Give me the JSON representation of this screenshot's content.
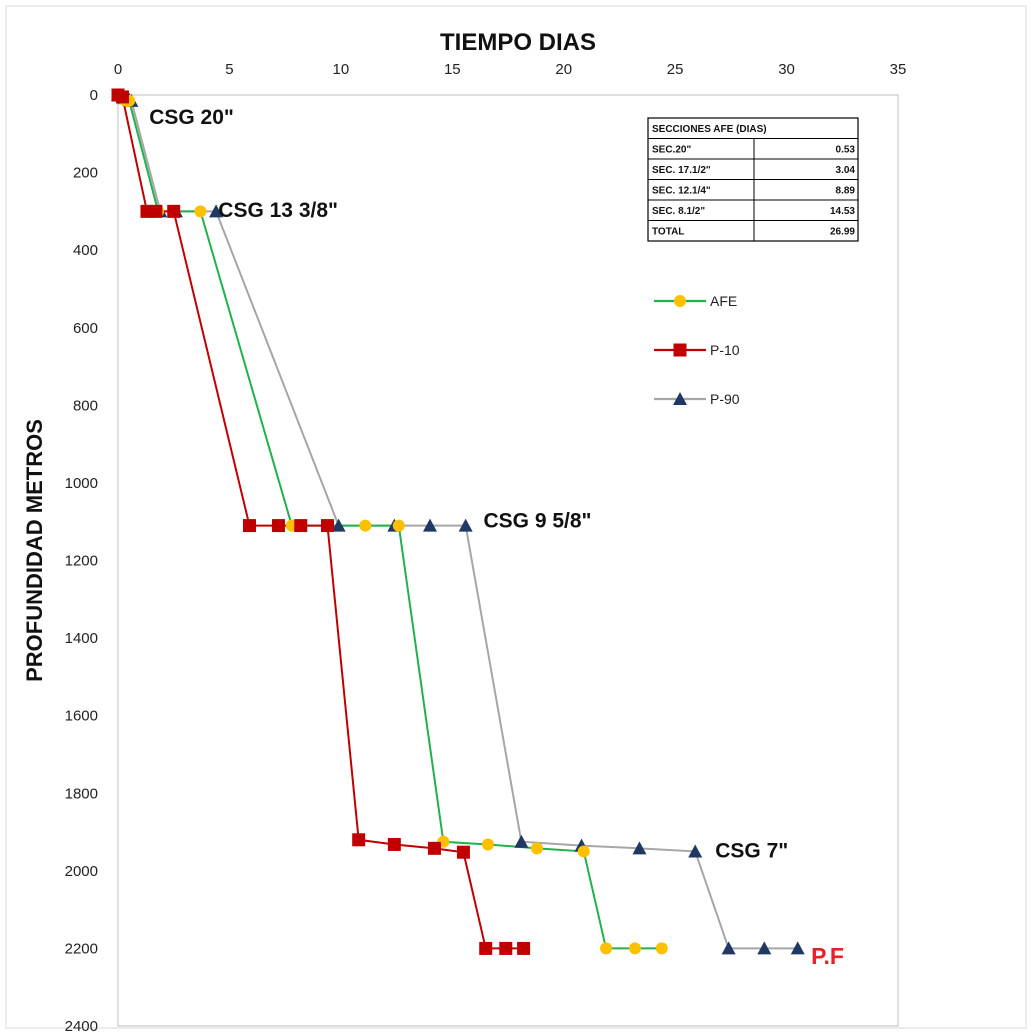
{
  "chart_data": {
    "type": "line",
    "title": "",
    "xlabel": "TIEMPO DIAS",
    "ylabel": "PROFUNDIDAD METROS",
    "xlim": [
      0,
      35
    ],
    "ylim": [
      0,
      2400
    ],
    "y_inverted": true,
    "x_axis_position": "top",
    "x_ticks": [
      "0",
      "5",
      "10",
      "15",
      "20",
      "25",
      "30",
      "35"
    ],
    "y_ticks": [
      "0",
      "200",
      "400",
      "600",
      "800",
      "1000",
      "1200",
      "1400",
      "1600",
      "1800",
      "2000",
      "2200",
      "2400"
    ],
    "grid": false,
    "legend_position": "right",
    "series": [
      {
        "name": "AFE",
        "color": "#22b14c",
        "marker": "circle",
        "marker_color": "#ffc000",
        "x": [
          0,
          0.2,
          0.4,
          0.5,
          1.8,
          3.7,
          7.8,
          8.0,
          11.1,
          12.6,
          14.6,
          16.6,
          18.8,
          20.9,
          21.9,
          23.2,
          24.4
        ],
        "y": [
          0,
          10,
          15,
          15,
          300,
          300,
          1110,
          1110,
          1110,
          1110,
          1925,
          1932,
          1942,
          1950,
          2200,
          2200,
          2200
        ]
      },
      {
        "name": "P-10",
        "color": "#c00000",
        "marker": "square",
        "marker_color": "#c00000",
        "x": [
          0,
          0.2,
          1.3,
          1.7,
          2.5,
          5.9,
          7.2,
          8.2,
          9.4,
          10.8,
          12.4,
          14.2,
          15.5,
          16.5,
          17.4,
          18.2
        ],
        "y": [
          0,
          5,
          300,
          300,
          300,
          1110,
          1110,
          1110,
          1110,
          1920,
          1932,
          1942,
          1952,
          2200,
          2200,
          2200
        ]
      },
      {
        "name": "P-90",
        "color": "#a6a6a6",
        "marker": "triangle",
        "marker_color": "#1f3864",
        "x": [
          0,
          0.3,
          0.5,
          0.6,
          1.9,
          2.6,
          4.4,
          9.9,
          12.4,
          14.0,
          15.6,
          18.1,
          20.8,
          23.4,
          25.9,
          27.4,
          29.0,
          30.5
        ],
        "y": [
          0,
          8,
          12,
          15,
          300,
          300,
          300,
          1110,
          1110,
          1110,
          1110,
          1925,
          1935,
          1942,
          1950,
          2200,
          2200,
          2200
        ]
      }
    ],
    "annotations": [
      {
        "text": "CSG 20\"",
        "x": 1.4,
        "y": 75,
        "color": "#111111"
      },
      {
        "text": "CSG 13 3/8\"",
        "x": 4.5,
        "y": 315,
        "color": "#111111"
      },
      {
        "text": "CSG 9 5/8\"",
        "x": 16.4,
        "y": 1115,
        "color": "#111111"
      },
      {
        "text": "CSG 7\"",
        "x": 26.8,
        "y": 1965,
        "color": "#111111"
      },
      {
        "text": "P.F",
        "x": 31.1,
        "y": 2240,
        "color": "#e8202a"
      }
    ],
    "afe_table": {
      "header": "SECCIONES AFE (DIAS)",
      "rows": [
        {
          "label": "SEC.20\"",
          "value": "0.53"
        },
        {
          "label": "SEC. 17.1/2\"",
          "value": "3.04"
        },
        {
          "label": "SEC. 12.1/4\"",
          "value": "8.89"
        },
        {
          "label": "SEC. 8.1/2\"",
          "value": "14.53"
        },
        {
          "label": "TOTAL",
          "value": "26.99"
        }
      ]
    }
  }
}
